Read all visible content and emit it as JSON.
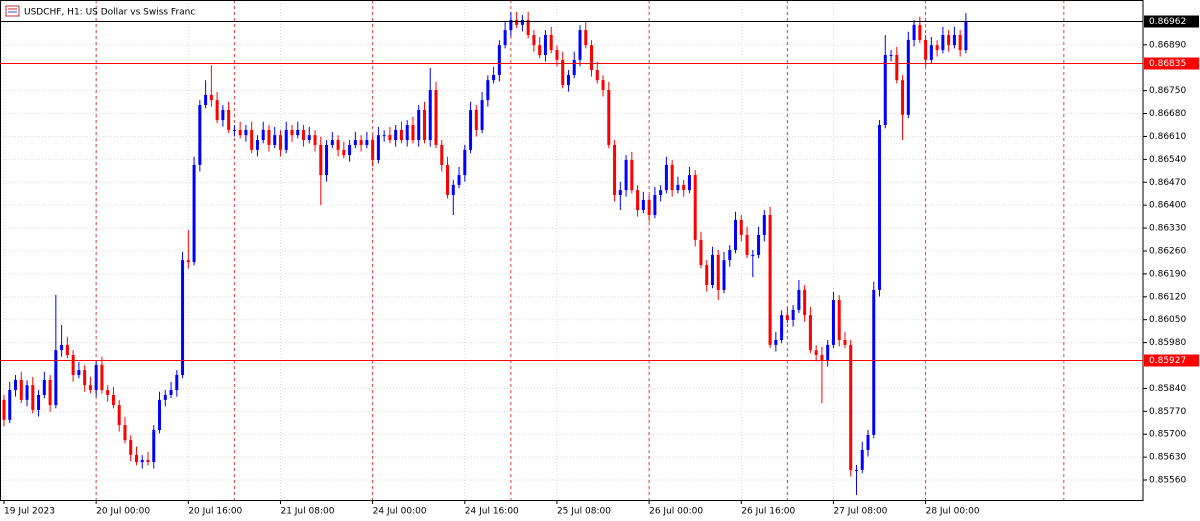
{
  "chart_data": {
    "type": "candlestick",
    "title": "USDCHF, H1:  US Dollar vs Swiss Franc",
    "up_color": "#0000ff",
    "down_color": "#ff0000",
    "grid": true,
    "ylim": [
      0.85499,
      0.87027
    ],
    "yticks": [
      {
        "value": 0.8689,
        "label": "0.86890"
      },
      {
        "value": 0.8675,
        "label": "0.86750"
      },
      {
        "value": 0.8668,
        "label": "0.86680"
      },
      {
        "value": 0.8661,
        "label": "0.86610"
      },
      {
        "value": 0.8654,
        "label": "0.86540"
      },
      {
        "value": 0.8647,
        "label": "0.86470"
      },
      {
        "value": 0.864,
        "label": "0.86400"
      },
      {
        "value": 0.8633,
        "label": "0.86330"
      },
      {
        "value": 0.8626,
        "label": "0.86260"
      },
      {
        "value": 0.8619,
        "label": "0.86190"
      },
      {
        "value": 0.8612,
        "label": "0.86120"
      },
      {
        "value": 0.8605,
        "label": "0.86050"
      },
      {
        "value": 0.8598,
        "label": "0.85980"
      },
      {
        "value": 0.8584,
        "label": "0.85840"
      },
      {
        "value": 0.8577,
        "label": "0.85770"
      },
      {
        "value": 0.857,
        "label": "0.85700"
      },
      {
        "value": 0.8563,
        "label": "0.85630"
      },
      {
        "value": 0.8556,
        "label": "0.85560"
      }
    ],
    "xticks": [
      {
        "value": 0,
        "label": "19 Jul 2023"
      },
      {
        "value": 16,
        "label": "20 Jul 00:00"
      },
      {
        "value": 32,
        "label": "20 Jul 16:00"
      },
      {
        "value": 48,
        "label": "21 Jul 08:00"
      },
      {
        "value": 64,
        "label": "24 Jul 00:00"
      },
      {
        "value": 80,
        "label": "24 Jul 16:00"
      },
      {
        "value": 96,
        "label": "25 Jul 08:00"
      },
      {
        "value": 112,
        "label": "26 Jul 00:00"
      },
      {
        "value": 128,
        "label": "26 Jul 16:00"
      },
      {
        "value": 144,
        "label": "27 Jul 08:00"
      },
      {
        "value": 160,
        "label": "28 Jul 00:00"
      }
    ],
    "price_lines": [
      {
        "value": 0.86962,
        "color": "#000000"
      },
      {
        "value": 0.86835,
        "color": "#ff0000"
      },
      {
        "value": 0.85927,
        "color": "#ff0000"
      }
    ],
    "open": [
      0.85805,
      0.85744,
      0.85835,
      0.85866,
      0.85805,
      0.8585,
      0.85774,
      0.8582,
      0.85866,
      0.85789,
      0.85957,
      0.85973,
      0.85942,
      0.85881,
      0.85896,
      0.8585,
      0.85835,
      0.85912,
      0.85835,
      0.8582,
      0.85789,
      0.85728,
      0.85682,
      0.85637,
      0.85615,
      0.85621,
      0.85615,
      0.85713,
      0.85805,
      0.8582,
      0.85835,
      0.85881,
      0.86232,
      0.86226,
      0.86523,
      0.86706,
      0.86737,
      0.86721,
      0.8666,
      0.86691,
      0.8663,
      0.8663,
      0.86614,
      0.8663,
      0.86569,
      0.86599,
      0.8663,
      0.86584,
      0.86614,
      0.86569,
      0.8663,
      0.86614,
      0.8663,
      0.86599,
      0.86614,
      0.86584,
      0.86492,
      0.86584,
      0.86599,
      0.86569,
      0.86553,
      0.86584,
      0.86599,
      0.86584,
      0.86599,
      0.86538,
      0.86614,
      0.86614,
      0.86599,
      0.8663,
      0.86599,
      0.86645,
      0.86599,
      0.86691,
      0.86599,
      0.86752,
      0.86584,
      0.86523,
      0.86431,
      0.86462,
      0.86492,
      0.86569,
      0.86691,
      0.8663,
      0.86721,
      0.86782,
      0.86798,
      0.86889,
      0.86935,
      0.86966,
      0.86951,
      0.86966,
      0.8692,
      0.86889,
      0.86859,
      0.8692,
      0.86874,
      0.86844,
      0.86767,
      0.86798,
      0.86844,
      0.86935,
      0.86889,
      0.86813,
      0.86782,
      0.86752,
      0.86584,
      0.86431,
      0.86446,
      0.86538,
      0.86446,
      0.86385,
      0.86416,
      0.8637,
      0.86431,
      0.86446,
      0.86523,
      0.86446,
      0.86462,
      0.86446,
      0.86492,
      0.86294,
      0.86217,
      0.86156,
      0.86248,
      0.86141,
      0.86232,
      0.86263,
      0.86355,
      0.86309,
      0.86248,
      0.86248,
      0.86309,
      0.8637,
      0.85973,
      0.85988,
      0.86064,
      0.86049,
      0.8608,
      0.86141,
      0.86064,
      0.85957,
      0.85942,
      0.85927,
      0.85973,
      0.8611,
      0.85988,
      0.85973,
      0.85591,
      0.85591,
      0.85652,
      0.85698,
      0.86141,
      0.86645,
      0.86859,
      0.86859,
      0.86782,
      0.86676,
      0.86905,
      0.86951,
      0.86905,
      0.86844,
      0.86889,
      0.86874,
      0.8692,
      0.86889,
      0.8692,
      0.86874
    ],
    "high": [
      0.8582,
      0.8586,
      0.85881,
      0.85891,
      0.85865,
      0.85875,
      0.85835,
      0.85891,
      0.85881,
      0.86126,
      0.86034,
      0.85998,
      0.85957,
      0.85921,
      0.85911,
      0.85875,
      0.85927,
      0.85937,
      0.8585,
      0.85845,
      0.85804,
      0.85753,
      0.85697,
      0.85662,
      0.85636,
      0.85646,
      0.85728,
      0.8583,
      0.85835,
      0.8586,
      0.85896,
      0.86257,
      0.86324,
      0.86548,
      0.86721,
      0.86782,
      0.86828,
      0.86746,
      0.86706,
      0.86716,
      0.86645,
      0.86655,
      0.86645,
      0.86655,
      0.86614,
      0.86655,
      0.86645,
      0.86639,
      0.86629,
      0.86655,
      0.86645,
      0.86655,
      0.86645,
      0.86639,
      0.86629,
      0.86609,
      0.86599,
      0.86624,
      0.86614,
      0.86594,
      0.86599,
      0.86624,
      0.86614,
      0.86624,
      0.86614,
      0.86639,
      0.86629,
      0.86639,
      0.86645,
      0.86655,
      0.8666,
      0.8667,
      0.86706,
      0.86716,
      0.86819,
      0.86777,
      0.86599,
      0.86548,
      0.86477,
      0.86517,
      0.86584,
      0.86716,
      0.86706,
      0.86746,
      0.86797,
      0.86823,
      0.86904,
      0.8696,
      0.8699,
      0.86991,
      0.86981,
      0.86991,
      0.86935,
      0.86914,
      0.86935,
      0.86945,
      0.86889,
      0.86869,
      0.86813,
      0.86869,
      0.8695,
      0.8696,
      0.86904,
      0.86838,
      0.86797,
      0.86777,
      0.86599,
      0.86471,
      0.86553,
      0.86563,
      0.86461,
      0.86441,
      0.86431,
      0.86456,
      0.86461,
      0.86548,
      0.86538,
      0.86487,
      0.86477,
      0.86517,
      0.86507,
      0.86319,
      0.86232,
      0.86273,
      0.86263,
      0.86257,
      0.86278,
      0.8638,
      0.8637,
      0.86334,
      0.86263,
      0.86334,
      0.86385,
      0.86395,
      0.86013,
      0.86079,
      0.86089,
      0.86095,
      0.86171,
      0.86156,
      0.86089,
      0.85972,
      0.85967,
      0.85988,
      0.86135,
      0.86125,
      0.86013,
      0.85988,
      0.85606,
      0.85677,
      0.85713,
      0.86166,
      0.8666,
      0.8692,
      0.86874,
      0.86884,
      0.86797,
      0.8693,
      0.86966,
      0.86976,
      0.8692,
      0.86914,
      0.86904,
      0.86945,
      0.86935,
      0.86945,
      0.86935,
      0.86987
    ],
    "low": [
      0.85724,
      0.85734,
      0.85815,
      0.85795,
      0.85785,
      0.85764,
      0.85754,
      0.8581,
      0.85769,
      0.85779,
      0.85937,
      0.85932,
      0.85861,
      0.85871,
      0.8583,
      0.85825,
      0.85815,
      0.85825,
      0.858,
      0.85779,
      0.85708,
      0.85672,
      0.85617,
      0.85605,
      0.85595,
      0.85605,
      0.85595,
      0.85703,
      0.85785,
      0.8581,
      0.85815,
      0.85871,
      0.86206,
      0.86216,
      0.86503,
      0.86696,
      0.86701,
      0.8665,
      0.8664,
      0.8662,
      0.8661,
      0.86604,
      0.86594,
      0.86559,
      0.86549,
      0.86589,
      0.86564,
      0.86574,
      0.86549,
      0.86559,
      0.86594,
      0.86604,
      0.86579,
      0.86589,
      0.86564,
      0.864,
      0.86472,
      0.86574,
      0.86549,
      0.86543,
      0.86533,
      0.86574,
      0.86564,
      0.86574,
      0.86518,
      0.86528,
      0.86594,
      0.86589,
      0.86579,
      0.86589,
      0.86579,
      0.86589,
      0.86579,
      0.86589,
      0.86579,
      0.86574,
      0.86503,
      0.86421,
      0.8637,
      0.86452,
      0.86472,
      0.86559,
      0.8661,
      0.8662,
      0.86701,
      0.86772,
      0.86778,
      0.86879,
      0.86915,
      0.86941,
      0.86931,
      0.8691,
      0.86869,
      0.86849,
      0.86839,
      0.86864,
      0.86824,
      0.86757,
      0.86747,
      0.86788,
      0.86824,
      0.86879,
      0.86793,
      0.86772,
      0.86732,
      0.86574,
      0.86411,
      0.86385,
      0.86426,
      0.86436,
      0.86365,
      0.86375,
      0.8635,
      0.8636,
      0.86411,
      0.86436,
      0.86426,
      0.86436,
      0.86426,
      0.86436,
      0.86274,
      0.86207,
      0.86136,
      0.86146,
      0.8611,
      0.86131,
      0.86212,
      0.86253,
      0.86289,
      0.86238,
      0.8618,
      0.86238,
      0.86289,
      0.85963,
      0.85953,
      0.85978,
      0.86039,
      0.86029,
      0.8607,
      0.86044,
      0.85947,
      0.85922,
      0.85795,
      0.85907,
      0.85963,
      0.85968,
      0.85963,
      0.85571,
      0.85514,
      0.85581,
      0.85632,
      0.85688,
      0.86121,
      0.86635,
      0.86839,
      0.86772,
      0.86599,
      0.86666,
      0.86885,
      0.86895,
      0.86824,
      0.86834,
      0.86854,
      0.86864,
      0.86869,
      0.86879,
      0.86854,
      0.86864
    ],
    "close": [
      0.85744,
      0.85835,
      0.85866,
      0.85805,
      0.8585,
      0.85774,
      0.8582,
      0.85866,
      0.85789,
      0.85957,
      0.85973,
      0.85942,
      0.85881,
      0.85896,
      0.8585,
      0.85835,
      0.85912,
      0.85835,
      0.8582,
      0.85789,
      0.85728,
      0.85682,
      0.85637,
      0.85615,
      0.85621,
      0.85615,
      0.85713,
      0.85805,
      0.8582,
      0.85835,
      0.85881,
      0.86232,
      0.86226,
      0.86523,
      0.86706,
      0.86737,
      0.86721,
      0.8666,
      0.86691,
      0.8663,
      0.8663,
      0.86614,
      0.8663,
      0.86569,
      0.86599,
      0.8663,
      0.86584,
      0.86614,
      0.86569,
      0.8663,
      0.86614,
      0.8663,
      0.86599,
      0.86614,
      0.86584,
      0.86492,
      0.86584,
      0.86599,
      0.86569,
      0.86553,
      0.86584,
      0.86599,
      0.86584,
      0.86599,
      0.86538,
      0.86614,
      0.86614,
      0.86599,
      0.8663,
      0.86599,
      0.86645,
      0.86599,
      0.86691,
      0.86599,
      0.86752,
      0.86584,
      0.86523,
      0.86431,
      0.86462,
      0.86492,
      0.86569,
      0.86691,
      0.8663,
      0.86721,
      0.86782,
      0.86798,
      0.86889,
      0.86935,
      0.86966,
      0.86951,
      0.86966,
      0.8692,
      0.86889,
      0.86859,
      0.8692,
      0.86874,
      0.86844,
      0.86767,
      0.86798,
      0.86844,
      0.86935,
      0.86889,
      0.86813,
      0.86782,
      0.86752,
      0.86584,
      0.86431,
      0.86446,
      0.86538,
      0.86446,
      0.86385,
      0.86416,
      0.8637,
      0.86431,
      0.86446,
      0.86523,
      0.86446,
      0.86462,
      0.86446,
      0.86492,
      0.86294,
      0.86217,
      0.86156,
      0.86248,
      0.86141,
      0.86232,
      0.86263,
      0.86355,
      0.86309,
      0.86248,
      0.86248,
      0.86309,
      0.8637,
      0.85973,
      0.85988,
      0.86064,
      0.86049,
      0.8608,
      0.86141,
      0.86064,
      0.85957,
      0.85942,
      0.85927,
      0.85973,
      0.8611,
      0.85988,
      0.85973,
      0.85591,
      0.85591,
      0.85652,
      0.85698,
      0.86141,
      0.86645,
      0.86859,
      0.86859,
      0.86782,
      0.86676,
      0.86905,
      0.86951,
      0.86905,
      0.86844,
      0.86889,
      0.86874,
      0.8692,
      0.86889,
      0.8692,
      0.86874,
      0.86962
    ]
  }
}
